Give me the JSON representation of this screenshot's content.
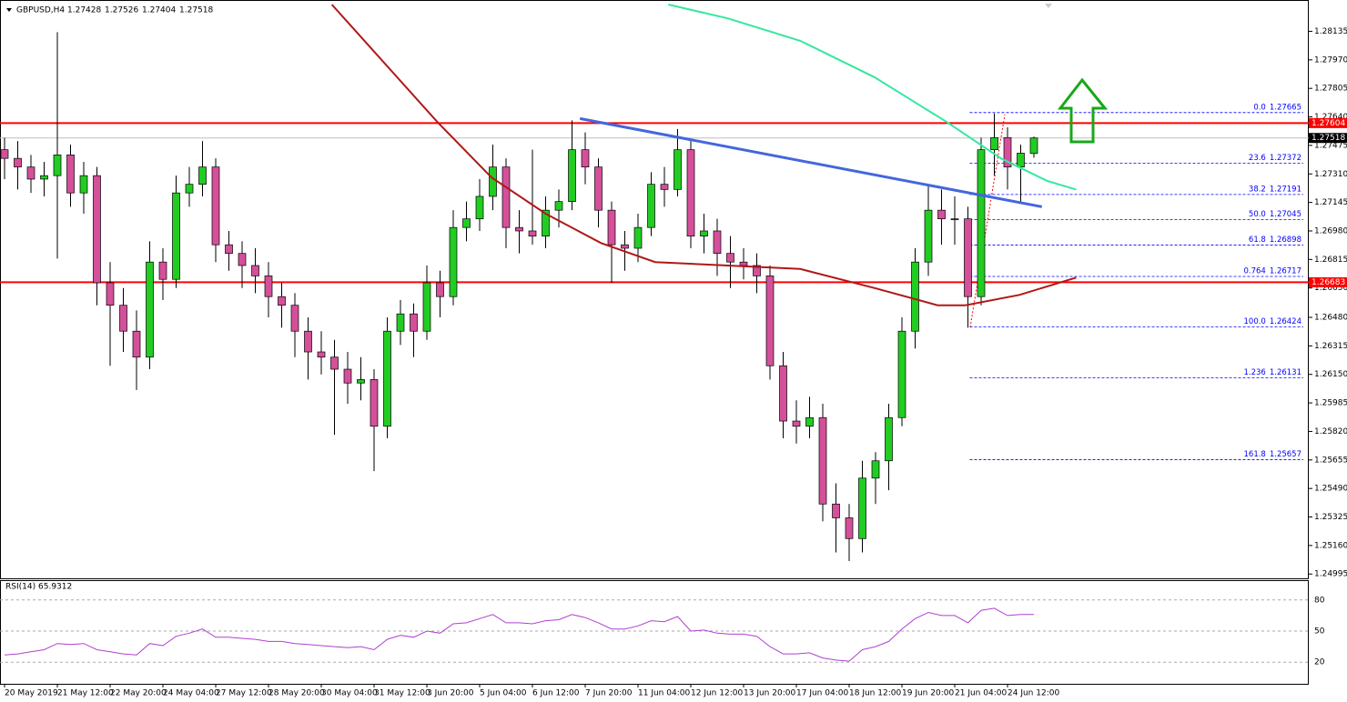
{
  "chart_data": {
    "type": "candlestick",
    "symbol": "GBPUSD,H4",
    "ohlc": [
      1.27428,
      1.27526,
      1.27404,
      1.27518
    ],
    "categories": [
      "20 May 2019",
      null,
      null,
      null,
      "21 May 12:00",
      null,
      null,
      null,
      "22 May 20:00",
      null,
      null,
      null,
      "24 May 04:00",
      null,
      null,
      null,
      "27 May 12:00",
      null,
      null,
      null,
      "28 May 20:00",
      null,
      null,
      null,
      "30 May 04:00",
      null,
      null,
      null,
      "31 May 12:00",
      null,
      null,
      null,
      "3 Jun 20:00",
      null,
      null,
      null,
      "5 Jun 04:00",
      null,
      null,
      null,
      "6 Jun 12:00",
      null,
      null,
      null,
      "7 Jun 20:00",
      null,
      null,
      null,
      "11 Jun 04:00",
      null,
      null,
      null,
      "12 Jun 12:00",
      null,
      null,
      null,
      "13 Jun 20:00",
      null,
      null,
      null,
      "17 Jun 04:00",
      null,
      null,
      null,
      "18 Jun 12:00",
      null,
      null,
      null,
      "19 Jun 20:00",
      null,
      null,
      null,
      "21 Jun 04:00",
      null,
      null,
      null,
      "24 Jun 12:00",
      null,
      null
    ],
    "candles": [
      [
        1.2745,
        1.2752,
        1.2728,
        1.274
      ],
      [
        1.274,
        1.275,
        1.2722,
        1.2735
      ],
      [
        1.2735,
        1.2742,
        1.272,
        1.2728
      ],
      [
        1.2728,
        1.2738,
        1.2718,
        1.273
      ],
      [
        1.273,
        1.2813,
        1.2682,
        1.2742
      ],
      [
        1.2742,
        1.2748,
        1.2712,
        1.272
      ],
      [
        1.272,
        1.2738,
        1.2708,
        1.273
      ],
      [
        1.273,
        1.2735,
        1.2655,
        1.2668
      ],
      [
        1.2668,
        1.268,
        1.262,
        1.2655
      ],
      [
        1.2655,
        1.2665,
        1.2628,
        1.264
      ],
      [
        1.264,
        1.2652,
        1.2606,
        1.2625
      ],
      [
        1.2625,
        1.2692,
        1.2618,
        1.268
      ],
      [
        1.268,
        1.2688,
        1.2658,
        1.267
      ],
      [
        1.267,
        1.273,
        1.2665,
        1.272
      ],
      [
        1.272,
        1.2735,
        1.2712,
        1.2725
      ],
      [
        1.2725,
        1.275,
        1.2718,
        1.2735
      ],
      [
        1.2735,
        1.274,
        1.268,
        1.269
      ],
      [
        1.269,
        1.2698,
        1.2675,
        1.2685
      ],
      [
        1.2685,
        1.2692,
        1.2665,
        1.2678
      ],
      [
        1.2678,
        1.2688,
        1.2662,
        1.2672
      ],
      [
        1.2672,
        1.268,
        1.2648,
        1.266
      ],
      [
        1.266,
        1.2668,
        1.2642,
        1.2655
      ],
      [
        1.2655,
        1.2662,
        1.2625,
        1.264
      ],
      [
        1.264,
        1.2648,
        1.2612,
        1.2628
      ],
      [
        1.2628,
        1.264,
        1.2615,
        1.2625
      ],
      [
        1.2625,
        1.2635,
        1.258,
        1.2618
      ],
      [
        1.2618,
        1.2628,
        1.2598,
        1.261
      ],
      [
        1.261,
        1.2625,
        1.26,
        1.2612
      ],
      [
        1.2612,
        1.2618,
        1.2559,
        1.2585
      ],
      [
        1.2585,
        1.2648,
        1.2578,
        1.264
      ],
      [
        1.264,
        1.2658,
        1.2632,
        1.265
      ],
      [
        1.265,
        1.2656,
        1.2625,
        1.264
      ],
      [
        1.264,
        1.2678,
        1.2635,
        1.2668
      ],
      [
        1.2668,
        1.2675,
        1.2648,
        1.266
      ],
      [
        1.266,
        1.271,
        1.2655,
        1.27
      ],
      [
        1.27,
        1.2715,
        1.2692,
        1.2705
      ],
      [
        1.2705,
        1.2728,
        1.2698,
        1.2718
      ],
      [
        1.2718,
        1.2748,
        1.271,
        1.2735
      ],
      [
        1.2735,
        1.274,
        1.2688,
        1.27
      ],
      [
        1.27,
        1.271,
        1.2685,
        1.2698
      ],
      [
        1.2698,
        1.2745,
        1.269,
        1.2695
      ],
      [
        1.2695,
        1.2718,
        1.2688,
        1.271
      ],
      [
        1.271,
        1.2722,
        1.27,
        1.2715
      ],
      [
        1.2715,
        1.2762,
        1.271,
        1.2745
      ],
      [
        1.2745,
        1.2755,
        1.2725,
        1.2735
      ],
      [
        1.2735,
        1.274,
        1.27,
        1.271
      ],
      [
        1.271,
        1.2715,
        1.2668,
        1.269
      ],
      [
        1.269,
        1.2698,
        1.2675,
        1.2688
      ],
      [
        1.2688,
        1.2708,
        1.268,
        1.27
      ],
      [
        1.27,
        1.2732,
        1.2695,
        1.2725
      ],
      [
        1.2725,
        1.2735,
        1.2712,
        1.2722
      ],
      [
        1.2722,
        1.2757,
        1.2718,
        1.2745
      ],
      [
        1.2745,
        1.275,
        1.2688,
        1.2695
      ],
      [
        1.2695,
        1.2708,
        1.2685,
        1.2698
      ],
      [
        1.2698,
        1.2705,
        1.2672,
        1.2685
      ],
      [
        1.2685,
        1.2695,
        1.2665,
        1.268
      ],
      [
        1.268,
        1.2688,
        1.267,
        1.2678
      ],
      [
        1.2678,
        1.2685,
        1.2662,
        1.2672
      ],
      [
        1.2672,
        1.2678,
        1.2612,
        1.262
      ],
      [
        1.262,
        1.2628,
        1.2578,
        1.2588
      ],
      [
        1.2588,
        1.26,
        1.2575,
        1.2585
      ],
      [
        1.2585,
        1.2602,
        1.2578,
        1.259
      ],
      [
        1.259,
        1.2598,
        1.253,
        1.254
      ],
      [
        1.254,
        1.2552,
        1.2512,
        1.2532
      ],
      [
        1.2532,
        1.254,
        1.2507,
        1.252
      ],
      [
        1.252,
        1.2565,
        1.2512,
        1.2555
      ],
      [
        1.2555,
        1.257,
        1.254,
        1.2565
      ],
      [
        1.2565,
        1.2598,
        1.2548,
        1.259
      ],
      [
        1.259,
        1.2648,
        1.2585,
        1.264
      ],
      [
        1.264,
        1.2688,
        1.263,
        1.268
      ],
      [
        1.268,
        1.2725,
        1.2672,
        1.271
      ],
      [
        1.271,
        1.2722,
        1.269,
        1.2705
      ],
      [
        1.2705,
        1.2718,
        1.269,
        1.2705
      ],
      [
        1.2705,
        1.2712,
        1.2642,
        1.266
      ],
      [
        1.266,
        1.2752,
        1.2655,
        1.2745
      ],
      [
        1.2745,
        1.2766,
        1.273,
        1.2752
      ],
      [
        1.2752,
        1.2758,
        1.2722,
        1.2735
      ],
      [
        1.2735,
        1.2748,
        1.2715,
        1.2743
      ],
      [
        1.27428,
        1.27526,
        1.27404,
        1.27518
      ]
    ],
    "up_color": "#22cc22",
    "down_color": "#d4509a",
    "wick_color": "#000000",
    "ylim": [
      1.2497,
      1.2829
    ],
    "yticks": [
      1.28135,
      {
        "value": 1.2797,
        "label": "1.27970"
      },
      1.27805,
      {
        "value": 1.2764,
        "label": "1.27640"
      },
      1.27475,
      {
        "value": 1.2731,
        "label": "1.27310"
      },
      1.27145,
      {
        "value": 1.2698,
        "label": "1.26980"
      },
      1.26815,
      {
        "value": 1.2665,
        "label": "1.26650"
      },
      {
        "value": 1.2648,
        "label": "1.26480"
      },
      1.26315,
      {
        "value": 1.2615,
        "label": "1.26150"
      },
      1.25985,
      {
        "value": 1.2582,
        "label": "1.25820"
      },
      1.25655,
      {
        "value": 1.2549,
        "label": "1.25490"
      },
      1.25325,
      {
        "value": 1.2516,
        "label": "1.25160"
      },
      1.24995
    ],
    "hlines": [
      {
        "value": 1.27604,
        "color": "#ff0000"
      },
      {
        "value": 1.26683,
        "color": "#ff0000"
      }
    ],
    "last_price_color": "#000000",
    "overlays": [
      {
        "color": "#b01818",
        "width": 2,
        "x": [
          24.8,
          32.8,
          36.9,
          41,
          45.2,
          49.3,
          54.8,
          60.3,
          65.9,
          70.7,
          72.8,
          76.9,
          81.2
        ],
        "values": [
          1.2829,
          1.2761,
          1.2729,
          1.2708,
          1.2691,
          1.268,
          1.2678,
          1.2676,
          1.2665,
          1.2655,
          1.2655,
          1.2661,
          1.2671
        ]
      },
      {
        "color": "#33e8a0",
        "width": 2,
        "x": [
          50.3,
          54.8,
          60.3,
          65.9,
          71.4,
          75.5,
          79,
          81.2
        ],
        "values": [
          1.2829,
          1.2821,
          1.2808,
          1.2787,
          1.2761,
          1.274,
          1.2727,
          1.2722
        ]
      },
      {
        "color": "#4466dd",
        "width": 3,
        "x": [
          43.6,
          78.6
        ],
        "values": [
          1.2763,
          1.2712
        ]
      }
    ],
    "fibonacci": {
      "color": "#0000ff",
      "levels": [
        {
          "ratio": "0.0",
          "price": 1.27665
        },
        {
          "ratio": "23.6",
          "price": 1.27372
        },
        {
          "ratio": "38.2",
          "price": 1.27191
        },
        {
          "ratio": "50.0",
          "price": 1.27045
        },
        {
          "ratio": "61.8",
          "price": 1.26898
        },
        {
          "ratio": "0.764",
          "price": 1.26717
        },
        {
          "ratio": "100.0",
          "price": 1.26424
        },
        {
          "ratio": "1.236",
          "price": 1.26131
        },
        {
          "ratio": "161.8",
          "price": 1.25657
        }
      ]
    },
    "rsi": {
      "label": "RSI(14)",
      "value": 65.9312,
      "color": "#b040d0",
      "ylim": [
        0,
        100
      ],
      "yticks": [
        80,
        50,
        20
      ],
      "values": [
        27,
        28,
        30,
        32,
        38,
        37,
        38,
        32,
        30,
        28,
        27,
        38,
        36,
        45,
        48,
        52,
        44,
        44,
        43,
        42,
        40,
        40,
        38,
        37,
        36,
        35,
        34,
        35,
        32,
        42,
        46,
        44,
        50,
        48,
        57,
        58,
        62,
        66,
        58,
        58,
        57,
        60,
        61,
        66,
        63,
        58,
        52,
        52,
        55,
        60,
        59,
        64,
        50,
        51,
        48,
        47,
        47,
        45,
        35,
        28,
        28,
        29,
        24,
        22,
        21,
        32,
        35,
        40,
        52,
        62,
        68,
        65,
        65,
        58,
        70,
        72,
        65,
        66,
        65.9312
      ]
    }
  }
}
